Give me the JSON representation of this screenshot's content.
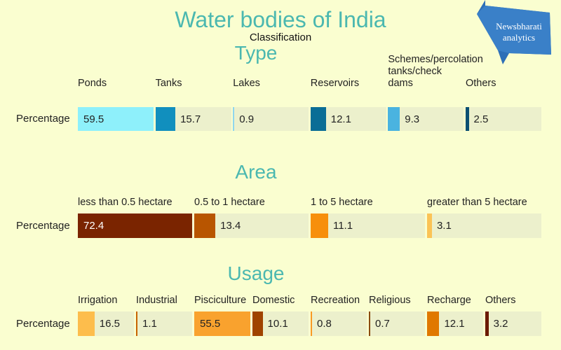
{
  "title": "Water bodies of India",
  "subtitle": "Classification",
  "logo_text": [
    "Newsbharati",
    "analytics"
  ],
  "row_label": "Percentage",
  "chart_data": [
    {
      "type": "bar",
      "title": "Type",
      "categories": [
        "Ponds",
        "Tanks",
        "Lakes",
        "Reservoirs",
        "Schemes/percolation tanks/check dams",
        "Others"
      ],
      "values": [
        59.5,
        15.7,
        0.9,
        12.1,
        9.3,
        2.5
      ],
      "colors": [
        "#8ef0fb",
        "#118fbe",
        "#8fd6ee",
        "#0a6d96",
        "#4ab3e0",
        "#0b4f72"
      ]
    },
    {
      "type": "bar",
      "title": "Area",
      "categories": [
        "less than 0.5 hectare",
        "0.5 to 1 hectare",
        "1 to 5 hectare",
        "greater than 5 hectare"
      ],
      "values": [
        72.4,
        13.4,
        11.1,
        3.1
      ],
      "colors": [
        "#7a2400",
        "#b85500",
        "#f78f0c",
        "#fbc356"
      ]
    },
    {
      "type": "bar",
      "title": "Usage",
      "categories": [
        "Irrigation",
        "Industrial",
        "Pisciculture",
        "Domestic",
        "Recreation",
        "Religious",
        "Recharge",
        "Others"
      ],
      "values": [
        16.5,
        1.1,
        55.5,
        10.1,
        0.8,
        0.7,
        12.1,
        3.2
      ],
      "colors": [
        "#fdbd4c",
        "#c86400",
        "#f9a22e",
        "#a04300",
        "#f99a24",
        "#8a4a10",
        "#e07800",
        "#6b1a00"
      ]
    }
  ]
}
